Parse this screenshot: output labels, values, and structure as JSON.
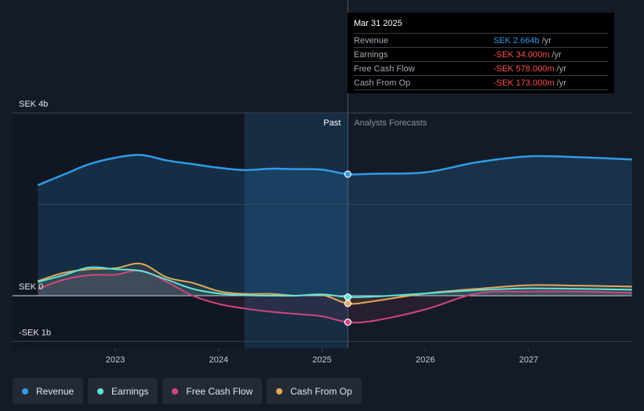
{
  "colors": {
    "revenue": "#2f9be8",
    "earnings": "#5fe3d6",
    "free_cash_flow": "#d1467d",
    "cash_from_op": "#e3a857",
    "negative": "#ff4d4d",
    "accent_value": "#2f9be8"
  },
  "tooltip": {
    "date": "Mar 31 2025",
    "rows": [
      {
        "label": "Revenue",
        "value": "SEK 2.664b",
        "unit": "/yr",
        "color": "#2f9be8"
      },
      {
        "label": "Earnings",
        "value": "-SEK 34.000m",
        "unit": "/yr",
        "color": "#ff4d4d"
      },
      {
        "label": "Free Cash Flow",
        "value": "-SEK 578.000m",
        "unit": "/yr",
        "color": "#ff4d4d"
      },
      {
        "label": "Cash From Op",
        "value": "-SEK 173.000m",
        "unit": "/yr",
        "color": "#ff4d4d"
      }
    ]
  },
  "legend": [
    {
      "label": "Revenue",
      "color": "#2f9be8"
    },
    {
      "label": "Earnings",
      "color": "#5fe3d6"
    },
    {
      "label": "Free Cash Flow",
      "color": "#d1467d"
    },
    {
      "label": "Cash From Op",
      "color": "#e3a857"
    }
  ],
  "chart_data": {
    "type": "line",
    "y_unit": "SEK",
    "ylim": [
      -1.0,
      4.0
    ],
    "xlim": [
      2022.0,
      2028.0
    ],
    "y_ticks": [
      {
        "value": 4.0,
        "label": "SEK 4b"
      },
      {
        "value": 0.0,
        "label": "SEK 0"
      },
      {
        "value": -1.0,
        "label": "-SEK 1b"
      }
    ],
    "x_ticks": [
      {
        "value": 2023.0,
        "label": "2023"
      },
      {
        "value": 2024.0,
        "label": "2024"
      },
      {
        "value": 2025.0,
        "label": "2025"
      },
      {
        "value": 2026.0,
        "label": "2026"
      },
      {
        "value": 2027.0,
        "label": "2027"
      }
    ],
    "divider_x": 2025.25,
    "divider_labels": {
      "past": "Past",
      "forecast": "Analysts Forecasts"
    },
    "highlight_x": 2024.25,
    "series": [
      {
        "name": "Revenue",
        "key": "revenue",
        "x": [
          2022.25,
          2022.5,
          2022.75,
          2023.0,
          2023.25,
          2023.5,
          2023.75,
          2024.0,
          2024.25,
          2024.5,
          2024.75,
          2025.0,
          2025.25
        ],
        "y": [
          2.42,
          2.65,
          2.88,
          3.02,
          3.08,
          2.96,
          2.88,
          2.8,
          2.75,
          2.78,
          2.77,
          2.76,
          2.66
        ],
        "forecast_x": [
          2025.25,
          2025.5,
          2026.0,
          2026.5,
          2027.0,
          2027.5,
          2028.0
        ],
        "forecast_y": [
          2.66,
          2.67,
          2.7,
          2.92,
          3.05,
          3.03,
          2.98
        ]
      },
      {
        "name": "Earnings",
        "key": "earnings",
        "x": [
          2022.25,
          2022.5,
          2022.75,
          2023.0,
          2023.25,
          2023.5,
          2023.75,
          2024.0,
          2024.25,
          2024.5,
          2024.75,
          2025.0,
          2025.25
        ],
        "y": [
          0.3,
          0.45,
          0.62,
          0.58,
          0.54,
          0.35,
          0.15,
          0.05,
          0.01,
          0.0,
          0.0,
          0.03,
          -0.03
        ],
        "forecast_x": [
          2025.25,
          2025.5,
          2026.0,
          2026.5,
          2027.0,
          2027.5,
          2028.0
        ],
        "forecast_y": [
          -0.03,
          -0.02,
          0.05,
          0.12,
          0.16,
          0.15,
          0.13
        ]
      },
      {
        "name": "Free Cash Flow",
        "key": "free_cash_flow",
        "x": [
          2022.25,
          2022.5,
          2022.75,
          2023.0,
          2023.25,
          2023.5,
          2023.75,
          2024.0,
          2024.25,
          2024.5,
          2024.75,
          2025.0,
          2025.25
        ],
        "y": [
          0.15,
          0.35,
          0.45,
          0.46,
          0.55,
          0.3,
          0.0,
          -0.18,
          -0.28,
          -0.35,
          -0.4,
          -0.45,
          -0.58
        ],
        "forecast_x": [
          2025.25,
          2025.5,
          2026.0,
          2026.5,
          2027.0,
          2027.5,
          2028.0
        ],
        "forecast_y": [
          -0.58,
          -0.55,
          -0.3,
          0.05,
          0.09,
          0.09,
          0.06
        ]
      },
      {
        "name": "Cash From Op",
        "key": "cash_from_op",
        "x": [
          2022.25,
          2022.5,
          2022.75,
          2023.0,
          2023.25,
          2023.5,
          2023.75,
          2024.0,
          2024.25,
          2024.5,
          2024.75,
          2025.0,
          2025.25
        ],
        "y": [
          0.32,
          0.5,
          0.58,
          0.6,
          0.7,
          0.4,
          0.28,
          0.1,
          0.04,
          0.04,
          0.0,
          0.02,
          -0.17
        ],
        "forecast_x": [
          2025.25,
          2025.5,
          2026.0,
          2026.5,
          2027.0,
          2027.5,
          2028.0
        ],
        "forecast_y": [
          -0.17,
          -0.12,
          0.05,
          0.15,
          0.23,
          0.22,
          0.2
        ]
      }
    ]
  }
}
